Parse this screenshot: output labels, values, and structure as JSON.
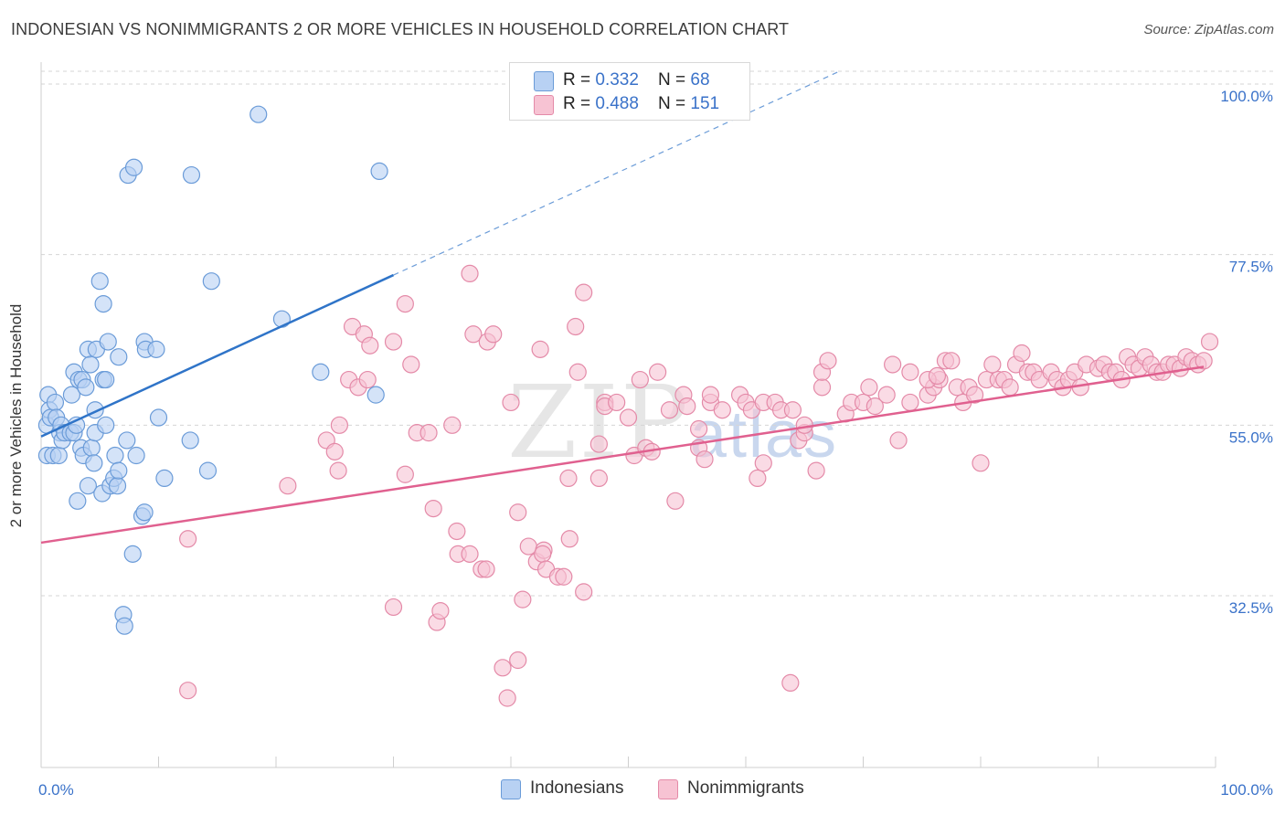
{
  "title": "INDONESIAN VS NONIMMIGRANTS 2 OR MORE VEHICLES IN HOUSEHOLD CORRELATION CHART",
  "source": "Source: ZipAtlas.com",
  "watermark_main": "ZIP",
  "watermark_sub": "atlas",
  "legend_top": {
    "rows": [
      {
        "r_label": "R = ",
        "r_value": "0.332",
        "n_label": "N = ",
        "n_value": "68"
      },
      {
        "r_label": "R = ",
        "r_value": "0.488",
        "n_label": "N = ",
        "n_value": "151"
      }
    ]
  },
  "colors": {
    "indonesians_fill": "#b8d1f3",
    "indonesians_stroke": "#6a9bd8",
    "indonesians_line": "#2f74c8",
    "nonimmigrants_fill": "#f7c3d3",
    "nonimmigrants_stroke": "#e48aa8",
    "nonimmigrants_line": "#e0608f",
    "axis_label": "#3a72c9",
    "grid": "#d5d5d5"
  },
  "chart_data": {
    "type": "scatter",
    "title": "INDONESIAN VS NONIMMIGRANTS 2 OR MORE VEHICLES IN HOUSEHOLD CORRELATION CHART",
    "xlabel": "",
    "ylabel": "2 or more Vehicles in Household",
    "xlim": [
      0,
      100
    ],
    "ylim": [
      10,
      102
    ],
    "x_tick_labels": [
      "0.0%",
      "100.0%"
    ],
    "y_ticks": [
      32.5,
      55.0,
      77.5,
      100.0
    ],
    "y_tick_labels": [
      "32.5%",
      "55.0%",
      "77.5%",
      "100.0%"
    ],
    "grid": "horizontal dashed",
    "legend_position": "bottom",
    "series": [
      {
        "name": "Indonesians",
        "R": 0.332,
        "N": 68,
        "trend": {
          "x0": 0,
          "y0": 53.5,
          "x1": 30,
          "y1": 74.8,
          "dashed_to_x": 68,
          "dashed_to_y": 101.7
        },
        "points": [
          [
            0.5,
            55
          ],
          [
            0.5,
            51
          ],
          [
            0.6,
            59
          ],
          [
            0.7,
            57
          ],
          [
            0.8,
            56
          ],
          [
            1,
            51
          ],
          [
            1.2,
            58
          ],
          [
            1.3,
            56
          ],
          [
            1.5,
            51
          ],
          [
            1.6,
            54
          ],
          [
            1.7,
            55
          ],
          [
            1.8,
            53
          ],
          [
            2,
            54
          ],
          [
            2.5,
            54
          ],
          [
            2.6,
            59
          ],
          [
            2.8,
            62
          ],
          [
            2.8,
            54
          ],
          [
            3,
            55
          ],
          [
            3.1,
            45
          ],
          [
            3.2,
            61
          ],
          [
            3.4,
            52
          ],
          [
            3.5,
            61
          ],
          [
            3.6,
            51
          ],
          [
            3.8,
            60
          ],
          [
            4,
            65
          ],
          [
            4,
            47
          ],
          [
            4.2,
            63
          ],
          [
            4.3,
            52
          ],
          [
            4.5,
            50
          ],
          [
            4.6,
            54
          ],
          [
            4.7,
            65
          ],
          [
            4.6,
            57
          ],
          [
            5,
            74
          ],
          [
            5.2,
            46
          ],
          [
            5.3,
            71
          ],
          [
            5.3,
            61
          ],
          [
            5.5,
            61
          ],
          [
            5.5,
            55
          ],
          [
            5.7,
            66
          ],
          [
            5.9,
            47
          ],
          [
            6.2,
            48
          ],
          [
            6.3,
            51
          ],
          [
            6.5,
            47
          ],
          [
            6.6,
            64
          ],
          [
            6.6,
            49
          ],
          [
            7,
            30
          ],
          [
            7.1,
            28.5
          ],
          [
            7.3,
            53
          ],
          [
            7.4,
            88
          ],
          [
            7.8,
            38
          ],
          [
            7.9,
            89
          ],
          [
            8.1,
            51
          ],
          [
            8.6,
            43
          ],
          [
            8.8,
            43.5
          ],
          [
            8.8,
            66
          ],
          [
            8.9,
            65
          ],
          [
            9.8,
            65
          ],
          [
            10,
            56
          ],
          [
            10.5,
            48
          ],
          [
            12.7,
            53
          ],
          [
            12.8,
            88
          ],
          [
            14.2,
            49
          ],
          [
            14.5,
            74
          ],
          [
            18.5,
            96
          ],
          [
            20.5,
            69
          ],
          [
            23.8,
            62
          ],
          [
            28.5,
            59
          ],
          [
            28.8,
            88.5
          ]
        ]
      },
      {
        "name": "Nonimmigrants",
        "R": 0.488,
        "N": 151,
        "trend": {
          "x0": 0,
          "y0": 39.5,
          "x1": 99,
          "y1": 62.7
        },
        "points": [
          [
            12.5,
            40
          ],
          [
            12.5,
            20
          ],
          [
            21,
            47
          ],
          [
            24.3,
            53
          ],
          [
            25,
            51.5
          ],
          [
            25.3,
            49
          ],
          [
            25.4,
            55
          ],
          [
            26.2,
            61
          ],
          [
            26.5,
            68
          ],
          [
            27,
            60
          ],
          [
            27.8,
            61
          ],
          [
            27.5,
            67
          ],
          [
            28,
            65.5
          ],
          [
            30,
            31
          ],
          [
            30,
            66
          ],
          [
            31,
            48.5
          ],
          [
            31,
            71
          ],
          [
            31.5,
            63
          ],
          [
            32,
            54
          ],
          [
            33,
            54
          ],
          [
            33.4,
            44
          ],
          [
            33.7,
            29
          ],
          [
            34,
            30.5
          ],
          [
            35,
            55
          ],
          [
            35.4,
            41
          ],
          [
            35.5,
            38
          ],
          [
            36.5,
            38
          ],
          [
            36.5,
            75
          ],
          [
            36.8,
            67
          ],
          [
            37.5,
            36
          ],
          [
            37.9,
            36
          ],
          [
            38,
            66
          ],
          [
            38.5,
            67
          ],
          [
            39.7,
            19
          ],
          [
            39.3,
            23
          ],
          [
            40,
            58
          ],
          [
            40.6,
            24
          ],
          [
            40.6,
            43.5
          ],
          [
            41,
            32
          ],
          [
            41.5,
            39
          ],
          [
            42.2,
            37
          ],
          [
            42.5,
            65
          ],
          [
            42.8,
            38.5
          ],
          [
            42.7,
            38
          ],
          [
            43,
            36
          ],
          [
            44,
            35
          ],
          [
            44.5,
            35
          ],
          [
            44.9,
            48
          ],
          [
            45,
            40
          ],
          [
            45.5,
            68
          ],
          [
            45.7,
            62
          ],
          [
            46.2,
            72.5
          ],
          [
            46.2,
            33
          ],
          [
            47.5,
            48
          ],
          [
            47.5,
            52.5
          ],
          [
            48,
            58
          ],
          [
            48,
            57.5
          ],
          [
            49,
            58
          ],
          [
            50,
            56
          ],
          [
            50.5,
            51
          ],
          [
            51,
            61
          ],
          [
            51.5,
            52
          ],
          [
            52,
            51.5
          ],
          [
            52.5,
            62
          ],
          [
            53.5,
            57
          ],
          [
            54,
            45
          ],
          [
            54.7,
            59
          ],
          [
            55,
            57.5
          ],
          [
            56,
            52
          ],
          [
            56,
            54.5
          ],
          [
            56.5,
            50.5
          ],
          [
            57,
            58
          ],
          [
            57,
            59
          ],
          [
            58,
            57
          ],
          [
            59.5,
            59
          ],
          [
            60,
            58
          ],
          [
            60.5,
            57
          ],
          [
            61,
            48
          ],
          [
            61.5,
            50
          ],
          [
            61.5,
            58
          ],
          [
            62.5,
            58
          ],
          [
            63,
            57
          ],
          [
            64,
            57
          ],
          [
            64.5,
            53
          ],
          [
            65,
            54
          ],
          [
            65,
            55
          ],
          [
            66,
            49
          ],
          [
            66.5,
            60
          ],
          [
            66.5,
            62
          ],
          [
            67,
            63.5
          ],
          [
            68.5,
            56.5
          ],
          [
            69,
            58
          ],
          [
            70,
            58
          ],
          [
            70.5,
            60
          ],
          [
            71,
            57.5
          ],
          [
            72,
            59
          ],
          [
            72.5,
            63
          ],
          [
            73,
            53
          ],
          [
            74,
            58
          ],
          [
            74,
            62
          ],
          [
            75.5,
            59
          ],
          [
            76,
            60
          ],
          [
            76.5,
            61
          ],
          [
            77,
            63.5
          ],
          [
            77.5,
            63.5
          ],
          [
            78,
            60
          ],
          [
            78.5,
            58
          ],
          [
            79,
            60
          ],
          [
            79.5,
            59
          ],
          [
            80,
            50
          ],
          [
            80.5,
            61
          ],
          [
            81,
            63
          ],
          [
            81.5,
            61
          ],
          [
            82,
            61
          ],
          [
            82.5,
            60
          ],
          [
            83,
            63
          ],
          [
            83.5,
            64.5
          ],
          [
            84,
            62
          ],
          [
            84.5,
            62
          ],
          [
            85,
            61
          ],
          [
            86,
            62
          ],
          [
            86.5,
            61
          ],
          [
            87,
            60
          ],
          [
            87.5,
            61
          ],
          [
            88,
            62
          ],
          [
            88.5,
            60
          ],
          [
            89,
            63
          ],
          [
            90,
            62.5
          ],
          [
            90.5,
            63
          ],
          [
            91,
            62
          ],
          [
            91.5,
            62
          ],
          [
            92,
            61
          ],
          [
            92.5,
            64
          ],
          [
            93,
            63
          ],
          [
            93.5,
            62.5
          ],
          [
            94,
            64
          ],
          [
            94.5,
            63
          ],
          [
            95,
            62
          ],
          [
            95.5,
            62
          ],
          [
            96,
            63
          ],
          [
            96.5,
            63
          ],
          [
            97,
            62.5
          ],
          [
            97.5,
            64
          ],
          [
            98,
            63.5
          ],
          [
            98.5,
            63
          ],
          [
            99,
            63.5
          ],
          [
            99.5,
            66
          ],
          [
            63.8,
            21
          ],
          [
            75.5,
            61
          ],
          [
            76.3,
            61.5
          ]
        ]
      }
    ]
  },
  "bottom_legend": [
    {
      "label": "Indonesians"
    },
    {
      "label": "Nonimmigrants"
    }
  ]
}
